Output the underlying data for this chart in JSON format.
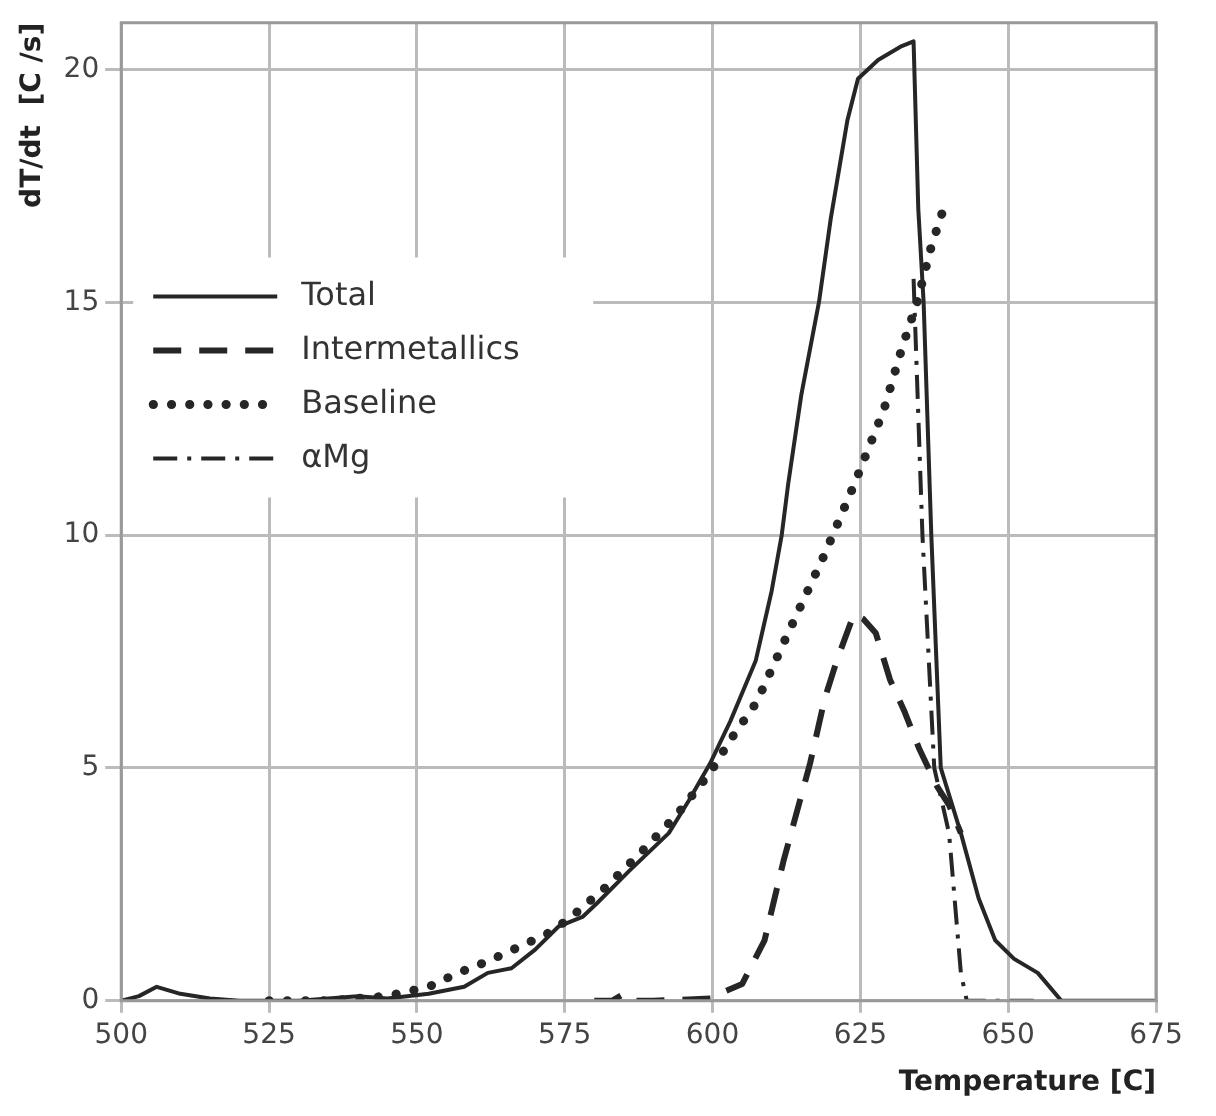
{
  "chart_data": {
    "type": "line",
    "xlabel": "Temperature [C]",
    "ylabel": "dT/dt  [C /s]",
    "xlim": [
      500,
      675
    ],
    "xticks": [
      500,
      525,
      550,
      575,
      600,
      625,
      650,
      675
    ],
    "ylim": [
      0,
      21
    ],
    "yticks": [
      0,
      5,
      10,
      15,
      20
    ],
    "grid": true,
    "legend": "top left",
    "marker": "none",
    "series": [
      {
        "name": "Total",
        "color": "#262626",
        "line_style": "solid",
        "x": [
          500,
          503,
          506,
          510,
          515,
          520,
          530,
          540,
          545,
          552,
          558,
          562,
          566,
          570,
          574,
          578,
          580.5,
          586,
          592.6,
          596,
          599.6,
          603,
          607.3,
          610,
          611.7,
          612.8,
          615,
          618,
          620,
          622.8,
          624.6,
          628,
          632,
          634,
          634.8,
          635.7,
          637,
          638.6,
          642,
          645,
          647.8,
          651,
          655,
          659,
          665,
          675
        ],
        "values": [
          0,
          0.1,
          0.3,
          0.15,
          0.05,
          0,
          0,
          0.1,
          0.05,
          0.15,
          0.3,
          0.6,
          0.7,
          1.1,
          1.6,
          1.8,
          2.1,
          2.8,
          3.6,
          4.3,
          5.1,
          6.0,
          7.3,
          8.8,
          10,
          11.1,
          13,
          15,
          16.8,
          18.9,
          19.8,
          20.2,
          20.5,
          20.6,
          17,
          15,
          10,
          5,
          3.6,
          2.2,
          1.3,
          0.9,
          0.6,
          0,
          0,
          0
        ]
      },
      {
        "name": "Intermetallics",
        "color": "#262626",
        "line_style": "dashed",
        "x": [
          580,
          583,
          585,
          587,
          590,
          600,
          602,
          605,
          608.8,
          612,
          616.5,
          619,
          621,
          623.9,
          625.5,
          627.6,
          630,
          632.5,
          635,
          638,
          640,
          642
        ],
        "values": [
          0,
          0,
          0.15,
          0,
          0,
          0.05,
          0.2,
          0.36,
          1.3,
          3,
          5.1,
          6.5,
          7.3,
          8.3,
          8.2,
          7.9,
          6.9,
          6.2,
          5.4,
          4.6,
          4.2,
          3.6
        ]
      },
      {
        "name": "Baseline",
        "color": "#262626",
        "line_style": "dotted",
        "x": [
          525,
          535,
          545,
          552,
          557,
          562,
          568,
          573,
          577,
          581.6,
          588,
          594,
          599.6,
          603,
          607.4,
          612.8,
          619,
          624,
          629,
          632,
          634.6,
          637,
          639.3
        ],
        "values": [
          0,
          0,
          0.1,
          0.3,
          0.6,
          0.85,
          1.2,
          1.5,
          1.9,
          2.4,
          3.2,
          4.0,
          4.9,
          5.6,
          6.4,
          7.9,
          9.6,
          11.1,
          12.7,
          14,
          15,
          16.2,
          17.1
        ]
      },
      {
        "name": "αMg",
        "color": "#262626",
        "line_style": "dashdot",
        "x": [
          634,
          635.5,
          637.5,
          640,
          642,
          643,
          648,
          655
        ],
        "values": [
          15.5,
          10,
          5,
          3.6,
          0.6,
          0,
          0,
          0
        ]
      }
    ]
  }
}
